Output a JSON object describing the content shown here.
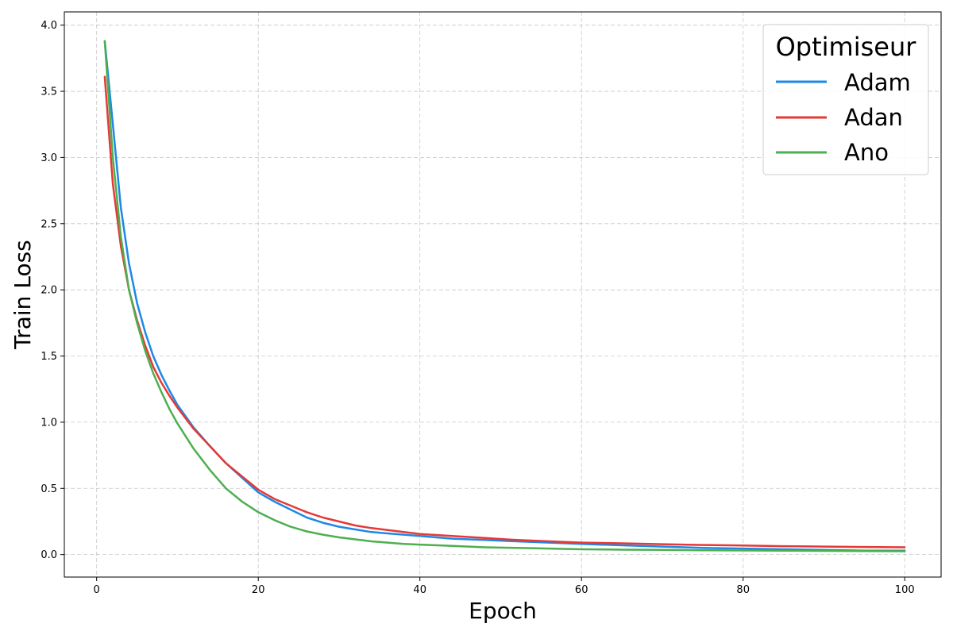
{
  "chart_data": {
    "type": "line",
    "title": "",
    "xlabel": "Epoch",
    "ylabel": "Train Loss",
    "xlim": [
      -4,
      104.5
    ],
    "ylim": [
      -0.17,
      4.1
    ],
    "xticks": [
      0,
      20,
      40,
      60,
      80,
      100
    ],
    "xtick_labels": [
      "0",
      "20",
      "40",
      "60",
      "80",
      "100"
    ],
    "yticks": [
      0.0,
      0.5,
      1.0,
      1.5,
      2.0,
      2.5,
      3.0,
      3.5,
      4.0
    ],
    "ytick_labels": [
      "0.0",
      "0.5",
      "1.0",
      "1.5",
      "2.0",
      "2.5",
      "3.0",
      "3.5",
      "4.0"
    ],
    "grid": true,
    "legend": {
      "title": "Optimiseur",
      "placement": "top-right"
    },
    "series": [
      {
        "name": "Adam",
        "color": "#1e88e5",
        "x": [
          1,
          2,
          3,
          4,
          5,
          6,
          7,
          8,
          9,
          10,
          12,
          14,
          16,
          18,
          20,
          22,
          24,
          26,
          28,
          30,
          32,
          34,
          36,
          38,
          40,
          44,
          48,
          52,
          56,
          60,
          65,
          70,
          75,
          80,
          85,
          90,
          95,
          100
        ],
        "y": [
          3.88,
          3.25,
          2.62,
          2.2,
          1.9,
          1.68,
          1.5,
          1.36,
          1.24,
          1.13,
          0.96,
          0.82,
          0.69,
          0.58,
          0.47,
          0.4,
          0.34,
          0.28,
          0.24,
          0.21,
          0.19,
          0.17,
          0.16,
          0.15,
          0.14,
          0.12,
          0.11,
          0.1,
          0.09,
          0.08,
          0.07,
          0.06,
          0.05,
          0.045,
          0.04,
          0.035,
          0.03,
          0.03
        ]
      },
      {
        "name": "Adan",
        "color": "#e53935",
        "x": [
          1,
          2,
          3,
          4,
          5,
          6,
          7,
          8,
          9,
          10,
          12,
          14,
          16,
          18,
          20,
          22,
          24,
          26,
          28,
          30,
          32,
          34,
          36,
          38,
          40,
          44,
          48,
          52,
          56,
          60,
          65,
          70,
          75,
          80,
          85,
          90,
          95,
          100
        ],
        "y": [
          3.61,
          2.8,
          2.33,
          2.0,
          1.77,
          1.58,
          1.42,
          1.3,
          1.2,
          1.11,
          0.95,
          0.82,
          0.69,
          0.59,
          0.49,
          0.42,
          0.37,
          0.32,
          0.28,
          0.25,
          0.22,
          0.2,
          0.185,
          0.17,
          0.155,
          0.14,
          0.125,
          0.11,
          0.1,
          0.09,
          0.085,
          0.078,
          0.072,
          0.068,
          0.063,
          0.06,
          0.057,
          0.055
        ]
      },
      {
        "name": "Ano",
        "color": "#4caf50",
        "x": [
          1,
          2,
          3,
          4,
          5,
          6,
          7,
          8,
          9,
          10,
          12,
          14,
          16,
          18,
          20,
          22,
          24,
          26,
          28,
          30,
          32,
          34,
          36,
          38,
          40,
          44,
          48,
          52,
          56,
          60,
          65,
          70,
          75,
          80,
          85,
          90,
          95,
          100
        ],
        "y": [
          3.88,
          3.0,
          2.4,
          2.0,
          1.75,
          1.54,
          1.37,
          1.23,
          1.1,
          0.99,
          0.8,
          0.64,
          0.5,
          0.4,
          0.32,
          0.26,
          0.21,
          0.175,
          0.15,
          0.13,
          0.115,
          0.1,
          0.09,
          0.08,
          0.075,
          0.065,
          0.055,
          0.05,
          0.045,
          0.04,
          0.037,
          0.035,
          0.033,
          0.031,
          0.03,
          0.028,
          0.027,
          0.025
        ]
      }
    ]
  }
}
